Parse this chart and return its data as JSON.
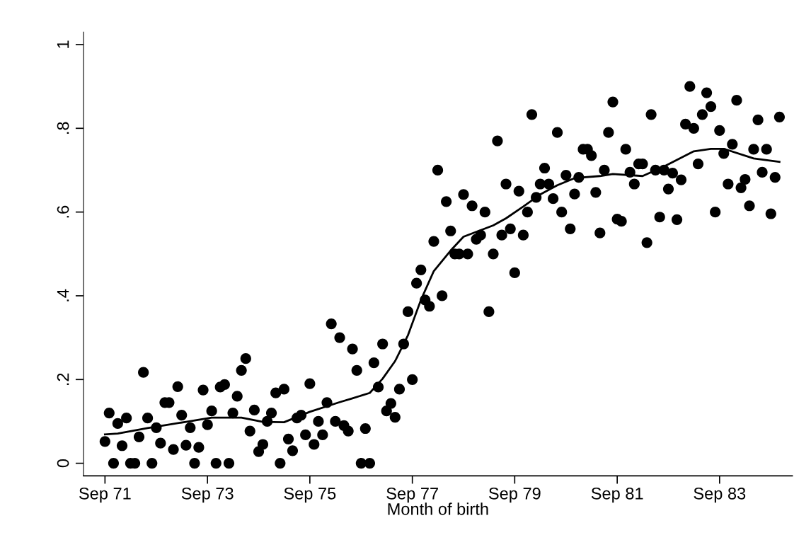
{
  "chart_data": {
    "type": "scatter",
    "xlabel": "Month of birth",
    "xlim": [
      "1971-04",
      "1985-02"
    ],
    "ylim": [
      -0.03,
      1.03
    ],
    "xticks": [
      {
        "value": "1971-09",
        "label": "Sep 71"
      },
      {
        "value": "1973-09",
        "label": "Sep 73"
      },
      {
        "value": "1975-09",
        "label": "Sep 75"
      },
      {
        "value": "1977-09",
        "label": "Sep 77"
      },
      {
        "value": "1979-09",
        "label": "Sep 79"
      },
      {
        "value": "1981-09",
        "label": "Sep 81"
      },
      {
        "value": "1983-09",
        "label": "Sep 83"
      }
    ],
    "yticks": [
      0,
      {
        "value": 0.2,
        "label": ".2"
      },
      {
        "value": 0.4,
        "label": ".4"
      },
      {
        "value": 0.6,
        "label": ".6"
      },
      {
        "value": 0.8,
        "label": ".8"
      },
      1
    ],
    "grid": false,
    "legend": false,
    "marker": "circle",
    "series": [
      {
        "color": "#000000",
        "x": [
          "1971-09",
          "1971-10",
          "1971-11",
          "1971-12",
          "1972-01",
          "1972-02",
          "1972-03",
          "1972-04",
          "1972-05",
          "1972-06",
          "1972-07",
          "1972-08",
          "1972-09",
          "1972-10",
          "1972-11",
          "1972-12",
          "1973-01",
          "1973-02",
          "1973-03",
          "1973-04",
          "1973-05",
          "1973-06",
          "1973-07",
          "1973-08",
          "1973-09",
          "1973-10",
          "1973-11",
          "1973-12",
          "1974-01",
          "1974-02",
          "1974-03",
          "1974-04",
          "1974-05",
          "1974-06",
          "1974-07",
          "1974-08",
          "1974-09",
          "1974-10",
          "1974-11",
          "1974-12",
          "1975-01",
          "1975-02",
          "1975-03",
          "1975-04",
          "1975-05",
          "1975-06",
          "1975-07",
          "1975-08",
          "1975-09",
          "1975-10",
          "1975-11",
          "1975-12",
          "1976-01",
          "1976-02",
          "1976-03",
          "1976-04",
          "1976-05",
          "1976-06",
          "1976-07",
          "1976-08",
          "1976-09",
          "1976-10",
          "1976-11",
          "1976-12",
          "1977-01",
          "1977-02",
          "1977-03",
          "1977-04",
          "1977-05",
          "1977-06",
          "1977-07",
          "1977-08",
          "1977-09",
          "1977-10",
          "1977-11",
          "1977-12",
          "1978-01",
          "1978-02",
          "1978-03",
          "1978-04",
          "1978-05",
          "1978-06",
          "1978-07",
          "1978-08",
          "1978-09",
          "1978-10",
          "1978-11",
          "1978-12",
          "1979-01",
          "1979-02",
          "1979-03",
          "1979-04",
          "1979-05",
          "1979-06",
          "1979-07",
          "1979-08",
          "1979-09",
          "1979-10",
          "1979-11",
          "1979-12",
          "1980-01",
          "1980-02",
          "1980-03",
          "1980-04",
          "1980-05",
          "1980-06",
          "1980-07",
          "1980-08",
          "1980-09",
          "1980-10",
          "1980-11",
          "1980-12",
          "1981-01",
          "1981-02",
          "1981-03",
          "1981-04",
          "1981-05",
          "1981-06",
          "1981-07",
          "1981-08",
          "1981-09",
          "1981-10",
          "1981-11",
          "1981-12",
          "1982-01",
          "1982-02",
          "1982-03",
          "1982-04",
          "1982-05",
          "1982-06",
          "1982-07",
          "1982-08",
          "1982-09",
          "1982-10",
          "1982-11",
          "1982-12",
          "1983-01",
          "1983-02",
          "1983-03",
          "1983-04",
          "1983-05",
          "1983-06",
          "1983-07",
          "1983-08",
          "1983-09",
          "1983-10",
          "1983-11",
          "1983-12",
          "1984-01",
          "1984-02",
          "1984-03",
          "1984-04",
          "1984-05",
          "1984-06",
          "1984-07",
          "1984-08",
          "1984-09",
          "1984-10",
          "1984-11"
        ],
        "values": [
          0.052,
          0.12,
          0,
          0.095,
          0.042,
          0.108,
          0,
          0,
          0.063,
          0.217,
          0.108,
          0,
          0.085,
          0.048,
          0.145,
          0.145,
          0.033,
          0.183,
          0.115,
          0.043,
          0.085,
          0,
          0.038,
          0.175,
          0.092,
          0.125,
          0,
          0.182,
          0.188,
          0,
          0.12,
          0.16,
          0.222,
          0.25,
          0.077,
          0.127,
          0.028,
          0.045,
          0.1,
          0.12,
          0.168,
          0,
          0.177,
          0.058,
          0.03,
          0.108,
          0.115,
          0.068,
          0.19,
          0.045,
          0.1,
          0.068,
          0.145,
          0.333,
          0.1,
          0.3,
          0.09,
          0.077,
          0.273,
          0.222,
          0,
          0.083,
          0,
          0.24,
          0.182,
          0.285,
          0.125,
          0.143,
          0.11,
          0.177,
          0.285,
          0.362,
          0.2,
          0.43,
          0.462,
          0.39,
          0.375,
          0.53,
          0.7,
          0.4,
          0.625,
          0.555,
          0.5,
          0.5,
          0.642,
          0.5,
          0.615,
          0.535,
          0.545,
          0.6,
          0.362,
          0.5,
          0.77,
          0.545,
          0.667,
          0.56,
          0.455,
          0.65,
          0.545,
          0.6,
          0.833,
          0.635,
          0.667,
          0.705,
          0.667,
          0.632,
          0.79,
          0.6,
          0.688,
          0.56,
          0.643,
          0.683,
          0.75,
          0.75,
          0.735,
          0.647,
          0.55,
          0.7,
          0.79,
          0.863,
          0.583,
          0.578,
          0.75,
          0.695,
          0.667,
          0.715,
          0.715,
          0.527,
          0.833,
          0.7,
          0.588,
          0.7,
          0.655,
          0.693,
          0.582,
          0.677,
          0.81,
          0.9,
          0.8,
          0.715,
          0.833,
          0.885,
          0.852,
          0.6,
          0.795,
          0.74,
          0.667,
          0.762,
          0.867,
          0.658,
          0.678,
          0.615,
          0.75,
          0.82,
          0.695,
          0.75,
          0.596,
          0.683,
          0.827
        ]
      },
      {
        "type": "line",
        "color": "#000000",
        "marker": "none",
        "line_style": "solid",
        "x": [
          "1971-09",
          "1971-12",
          "1972-07",
          "1973-04",
          "1973-10",
          "1974-05",
          "1974-10",
          "1975-03",
          "1975-09",
          "1976-04",
          "1976-07",
          "1976-11",
          "1977-02",
          "1977-05",
          "1977-08",
          "1977-11",
          "1978-02",
          "1978-06",
          "1978-09",
          "1979-04",
          "1979-07",
          "1979-11",
          "1980-03",
          "1980-07",
          "1980-11",
          "1981-05",
          "1981-08",
          "1982-03",
          "1982-08",
          "1983-03",
          "1983-07",
          "1983-10",
          "1984-05",
          "1984-11"
        ],
        "values": [
          0.069,
          0.071,
          0.084,
          0.099,
          0.109,
          0.109,
          0.099,
          0.098,
          0.123,
          0.146,
          0.155,
          0.168,
          0.202,
          0.244,
          0.306,
          0.39,
          0.459,
          0.508,
          0.541,
          0.568,
          0.585,
          0.613,
          0.642,
          0.664,
          0.681,
          0.686,
          0.691,
          0.686,
          0.709,
          0.745,
          0.751,
          0.751,
          0.728,
          0.72
        ]
      }
    ]
  }
}
